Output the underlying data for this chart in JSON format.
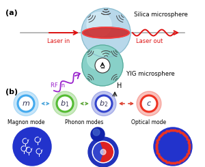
{
  "bg_color": "#ffffff",
  "panel_a_label": "(a)",
  "panel_b_label": "(b)",
  "silica_label": "Silica microsphere",
  "yig_label": "YIG microsphere",
  "laser_in_label": "Laser in",
  "laser_out_label": "Laser out",
  "rf_in_label": "RF in",
  "H_label": "H",
  "silica_color": "#b8d8ea",
  "silica_highlight": "#d8eef8",
  "yig_color": "#88d0c8",
  "yig_highlight": "#b0e8e0",
  "red_ring_color": "#cc2222",
  "vibration_color": "#444444",
  "laser_color": "#dd1111",
  "rf_color": "#9922cc",
  "dial_color": "#ffffff",
  "H_arrow_color": "#222222",
  "magnon_color": "#44aaee",
  "phonon1_color": "#55bb33",
  "phonon2_color": "#3344cc",
  "optical_color": "#ee3322",
  "arrow_blue": "#55aadd",
  "arrow_green": "#66aa44",
  "arrow_red": "#dd4433",
  "disk_blue": "#2233cc",
  "magnon_mode_label": "Magnon mode",
  "phonon_modes_label": "Phonon modes",
  "optical_mode_label": "Optical mode"
}
